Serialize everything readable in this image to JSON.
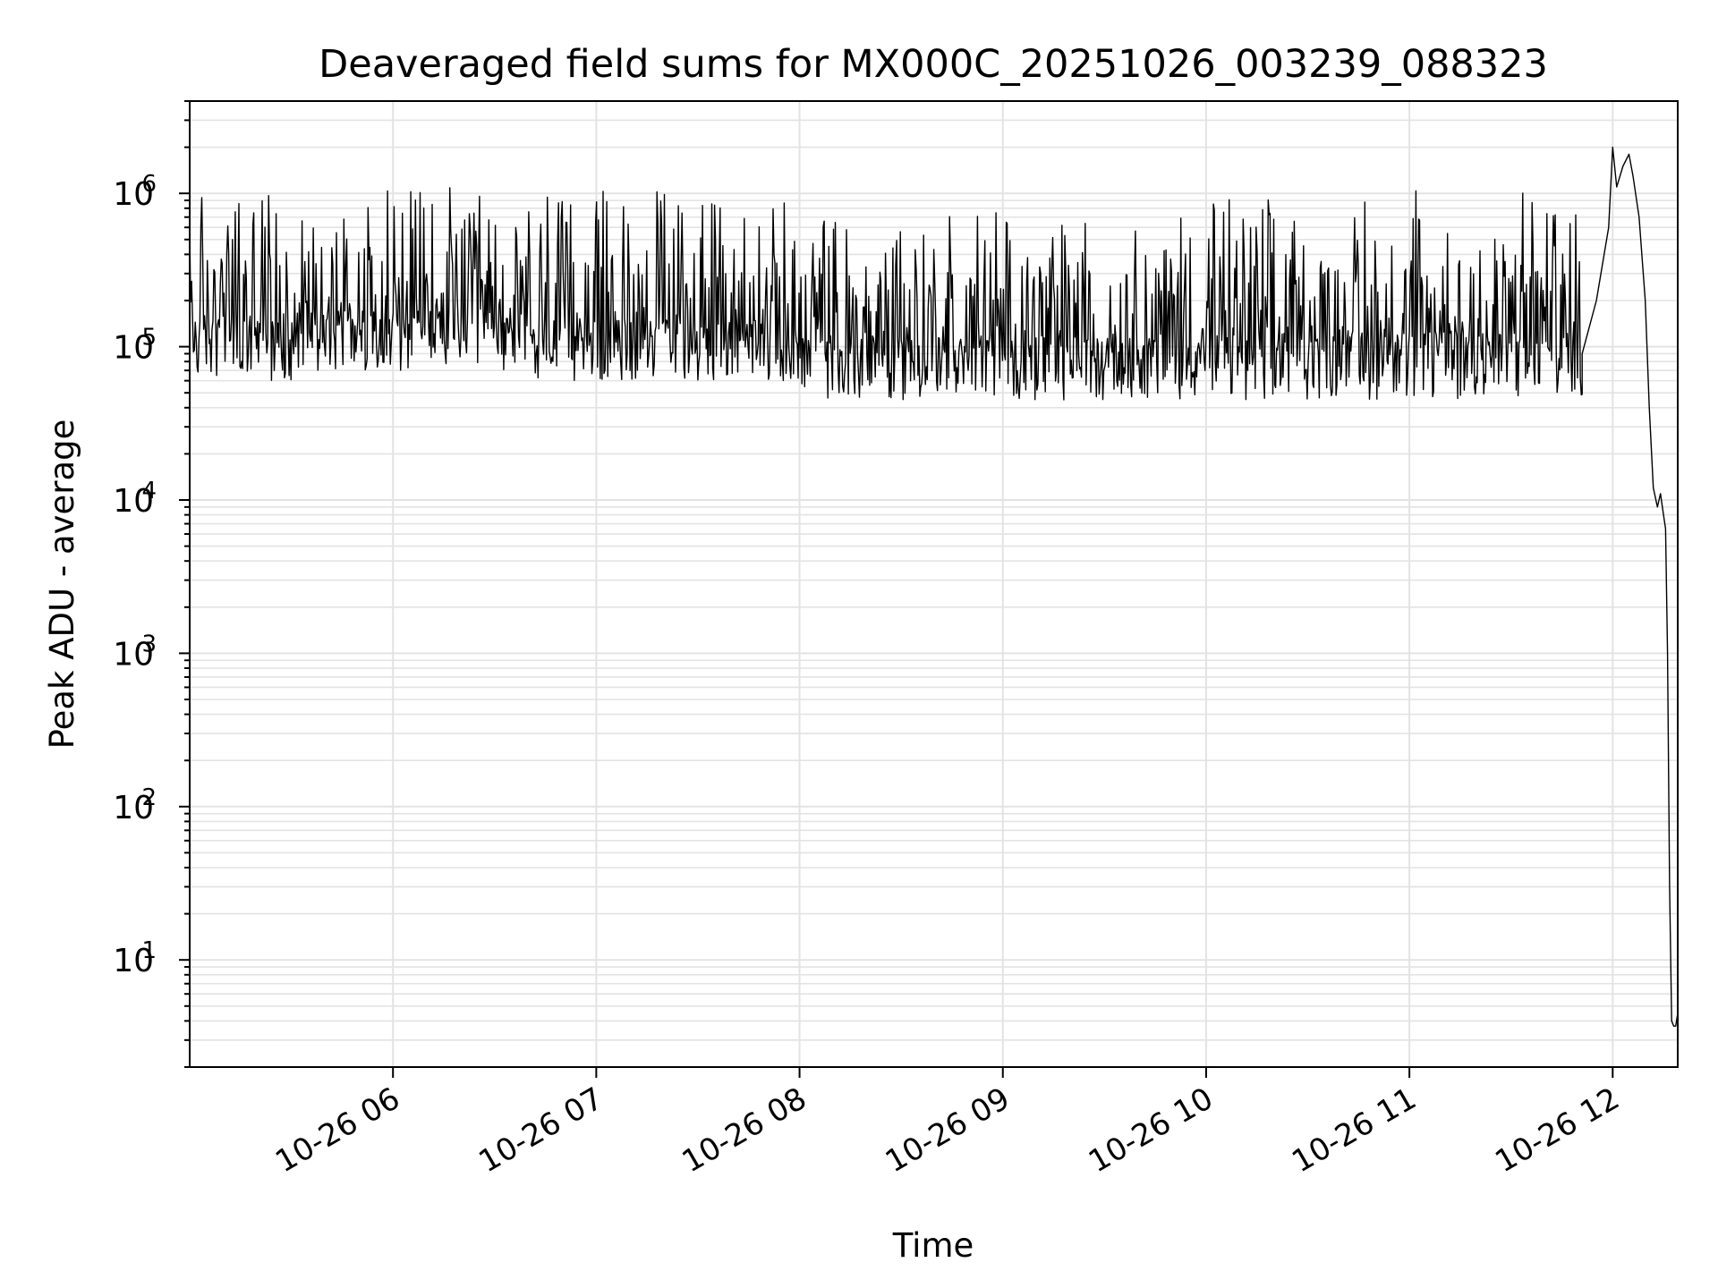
{
  "chart_data": {
    "type": "line",
    "title": "Deaveraged field sums for MX000C_20251026_003239_088323",
    "xlabel": "Time",
    "ylabel": "Peak ADU - average",
    "yscale": "log",
    "xlim": [
      5.0,
      12.32
    ],
    "ylim": [
      2.0,
      4000000
    ],
    "grid": true,
    "legend": "none",
    "line_color": "#000000",
    "grid_color": "#e3e3e3",
    "x_ticks": [
      {
        "value": 6,
        "label": "10-26 06"
      },
      {
        "value": 7,
        "label": "10-26 07"
      },
      {
        "value": 8,
        "label": "10-26 08"
      },
      {
        "value": 9,
        "label": "10-26 09"
      },
      {
        "value": 10,
        "label": "10-26 10"
      },
      {
        "value": 11,
        "label": "10-26 11"
      },
      {
        "value": 12,
        "label": "10-26 12"
      }
    ],
    "y_ticks": [
      {
        "value": 10,
        "base": "10",
        "exp": "1"
      },
      {
        "value": 100,
        "base": "10",
        "exp": "2"
      },
      {
        "value": 1000,
        "base": "10",
        "exp": "3"
      },
      {
        "value": 10000,
        "base": "10",
        "exp": "4"
      },
      {
        "value": 100000,
        "base": "10",
        "exp": "5"
      },
      {
        "value": 1000000,
        "base": "10",
        "exp": "6"
      }
    ],
    "series": [
      {
        "name": "deaveraged field sum",
        "noise_segments": [
          {
            "x_start": 5.0,
            "x_end": 5.5,
            "low": 60000,
            "high": 1000000
          },
          {
            "x_start": 5.5,
            "x_end": 6.5,
            "low": 70000,
            "high": 1000000
          },
          {
            "x_start": 6.5,
            "x_end": 7.5,
            "low": 60000,
            "high": 900000
          },
          {
            "x_start": 7.5,
            "x_end": 8.0,
            "low": 60000,
            "high": 800000
          },
          {
            "x_start": 8.0,
            "x_end": 9.0,
            "low": 45000,
            "high": 700000
          },
          {
            "x_start": 9.0,
            "x_end": 10.0,
            "low": 45000,
            "high": 700000
          },
          {
            "x_start": 10.0,
            "x_end": 11.0,
            "low": 45000,
            "high": 800000
          },
          {
            "x_start": 11.0,
            "x_end": 11.85,
            "low": 45000,
            "high": 900000
          }
        ],
        "tail_points": [
          {
            "x": 11.85,
            "y": 90000
          },
          {
            "x": 11.92,
            "y": 200000
          },
          {
            "x": 11.98,
            "y": 600000
          },
          {
            "x": 12.0,
            "y": 2000000
          },
          {
            "x": 12.02,
            "y": 1100000
          },
          {
            "x": 12.05,
            "y": 1500000
          },
          {
            "x": 12.08,
            "y": 1800000
          },
          {
            "x": 12.1,
            "y": 1300000
          },
          {
            "x": 12.13,
            "y": 700000
          },
          {
            "x": 12.16,
            "y": 200000
          },
          {
            "x": 12.18,
            "y": 40000
          },
          {
            "x": 12.2,
            "y": 12000
          },
          {
            "x": 12.22,
            "y": 9000
          },
          {
            "x": 12.235,
            "y": 11000
          },
          {
            "x": 12.25,
            "y": 8000
          },
          {
            "x": 12.26,
            "y": 6500
          },
          {
            "x": 12.27,
            "y": 1000
          },
          {
            "x": 12.28,
            "y": 30
          },
          {
            "x": 12.29,
            "y": 4
          },
          {
            "x": 12.3,
            "y": 3.7
          },
          {
            "x": 12.31,
            "y": 3.7
          },
          {
            "x": 12.32,
            "y": 4.5
          }
        ]
      }
    ]
  }
}
